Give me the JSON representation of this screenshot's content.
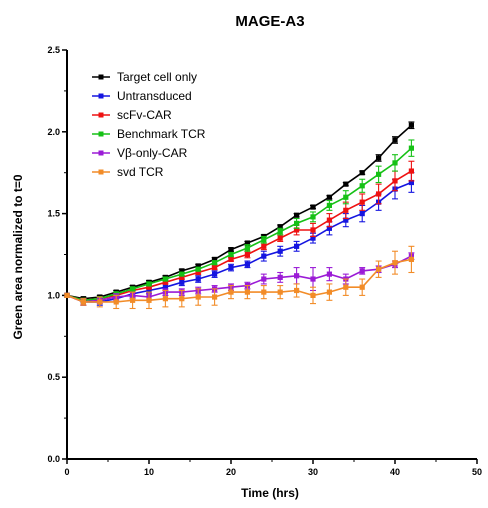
{
  "chart_data": {
    "type": "line",
    "title": "MAGE-A3",
    "xlabel": "Time (hrs)",
    "ylabel": "Green area normalized to t=0",
    "xlim": [
      0,
      50
    ],
    "ylim": [
      0,
      2.5
    ],
    "x_ticks": [
      "0",
      "10",
      "20",
      "30",
      "40",
      "50"
    ],
    "y_ticks": [
      "0.0",
      "0.5",
      "1.0",
      "1.5",
      "2.0",
      "2.5"
    ],
    "grid": false,
    "legend_position": "top-left",
    "x": [
      0,
      2,
      4,
      6,
      8,
      10,
      12,
      14,
      16,
      18,
      20,
      22,
      24,
      26,
      28,
      30,
      32,
      34,
      36,
      38,
      40,
      42
    ],
    "series": [
      {
        "name": "Target cell only",
        "color": "#000000",
        "values": [
          1.0,
          0.98,
          0.99,
          1.02,
          1.05,
          1.08,
          1.11,
          1.15,
          1.18,
          1.22,
          1.28,
          1.32,
          1.36,
          1.42,
          1.49,
          1.54,
          1.6,
          1.68,
          1.75,
          1.84,
          1.95,
          2.04
        ],
        "errors": [
          0,
          0.01,
          0.01,
          0.01,
          0.01,
          0.01,
          0.01,
          0.01,
          0.01,
          0.01,
          0.01,
          0.01,
          0.01,
          0.01,
          0.01,
          0.01,
          0.01,
          0.01,
          0.01,
          0.02,
          0.02,
          0.02
        ]
      },
      {
        "name": "Untransduced",
        "color": "#1515e0",
        "values": [
          1.0,
          0.96,
          0.96,
          0.98,
          1.01,
          1.03,
          1.05,
          1.08,
          1.1,
          1.13,
          1.17,
          1.19,
          1.24,
          1.27,
          1.3,
          1.35,
          1.41,
          1.46,
          1.5,
          1.57,
          1.65,
          1.69
        ],
        "errors": [
          0,
          0.02,
          0.02,
          0.02,
          0.02,
          0.02,
          0.02,
          0.02,
          0.02,
          0.02,
          0.02,
          0.02,
          0.03,
          0.03,
          0.03,
          0.03,
          0.04,
          0.04,
          0.05,
          0.05,
          0.06,
          0.06
        ]
      },
      {
        "name": "scFv-CAR",
        "color": "#ee1111",
        "values": [
          1.0,
          0.97,
          0.98,
          1.0,
          1.03,
          1.05,
          1.08,
          1.11,
          1.14,
          1.17,
          1.22,
          1.25,
          1.3,
          1.35,
          1.4,
          1.4,
          1.46,
          1.52,
          1.57,
          1.62,
          1.7,
          1.76
        ],
        "errors": [
          0,
          0.01,
          0.01,
          0.01,
          0.01,
          0.01,
          0.01,
          0.01,
          0.01,
          0.01,
          0.01,
          0.02,
          0.02,
          0.02,
          0.03,
          0.04,
          0.04,
          0.05,
          0.05,
          0.06,
          0.06,
          0.06
        ]
      },
      {
        "name": "Benchmark TCR",
        "color": "#16c116",
        "values": [
          1.0,
          0.97,
          0.98,
          1.01,
          1.04,
          1.07,
          1.1,
          1.13,
          1.16,
          1.2,
          1.25,
          1.29,
          1.34,
          1.39,
          1.44,
          1.48,
          1.55,
          1.6,
          1.67,
          1.74,
          1.81,
          1.9
        ],
        "errors": [
          0,
          0.01,
          0.01,
          0.01,
          0.01,
          0.01,
          0.01,
          0.01,
          0.01,
          0.01,
          0.01,
          0.02,
          0.02,
          0.02,
          0.03,
          0.03,
          0.03,
          0.04,
          0.04,
          0.05,
          0.05,
          0.05
        ]
      },
      {
        "name": "Vβ-only-CAR",
        "color": "#9b1bd6",
        "values": [
          1.0,
          0.96,
          0.97,
          0.99,
          1.0,
          0.99,
          1.02,
          1.02,
          1.03,
          1.04,
          1.05,
          1.06,
          1.1,
          1.11,
          1.12,
          1.1,
          1.13,
          1.1,
          1.15,
          1.16,
          1.19,
          1.24
        ],
        "errors": [
          0,
          0.02,
          0.02,
          0.02,
          0.02,
          0.02,
          0.02,
          0.02,
          0.02,
          0.02,
          0.02,
          0.02,
          0.03,
          0.03,
          0.05,
          0.07,
          0.04,
          0.03,
          0.02,
          0.02,
          0.02,
          0.02
        ]
      },
      {
        "name": "svd TCR",
        "color": "#f28c28",
        "values": [
          1.0,
          0.96,
          0.96,
          0.96,
          0.97,
          0.97,
          0.98,
          0.98,
          0.99,
          0.99,
          1.02,
          1.02,
          1.02,
          1.02,
          1.03,
          1.0,
          1.02,
          1.05,
          1.05,
          1.16,
          1.2,
          1.22
        ],
        "errors": [
          0,
          0.02,
          0.03,
          0.04,
          0.05,
          0.05,
          0.05,
          0.05,
          0.05,
          0.05,
          0.04,
          0.04,
          0.04,
          0.04,
          0.04,
          0.05,
          0.05,
          0.05,
          0.05,
          0.05,
          0.07,
          0.08
        ]
      }
    ]
  }
}
